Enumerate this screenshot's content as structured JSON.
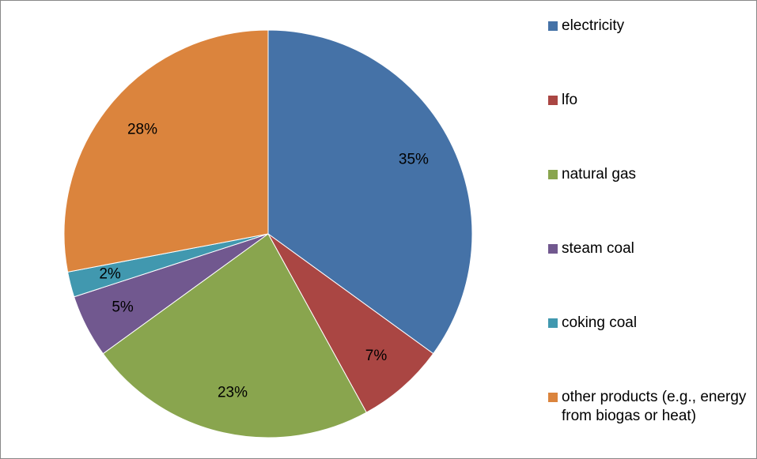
{
  "chart_data": {
    "type": "pie",
    "categories": [
      "electricity",
      "lfo",
      "natural gas",
      "steam coal",
      "coking coal",
      "other products (e.g., energy from biogas or heat)"
    ],
    "values": [
      35,
      7,
      23,
      5,
      2,
      28
    ],
    "value_labels": [
      "35%",
      "7%",
      "23%",
      "5%",
      "2%",
      "28%"
    ],
    "colors": [
      "#4572a7",
      "#aa4643",
      "#89a54e",
      "#71588f",
      "#4198af",
      "#db843d"
    ],
    "legend": "right"
  }
}
